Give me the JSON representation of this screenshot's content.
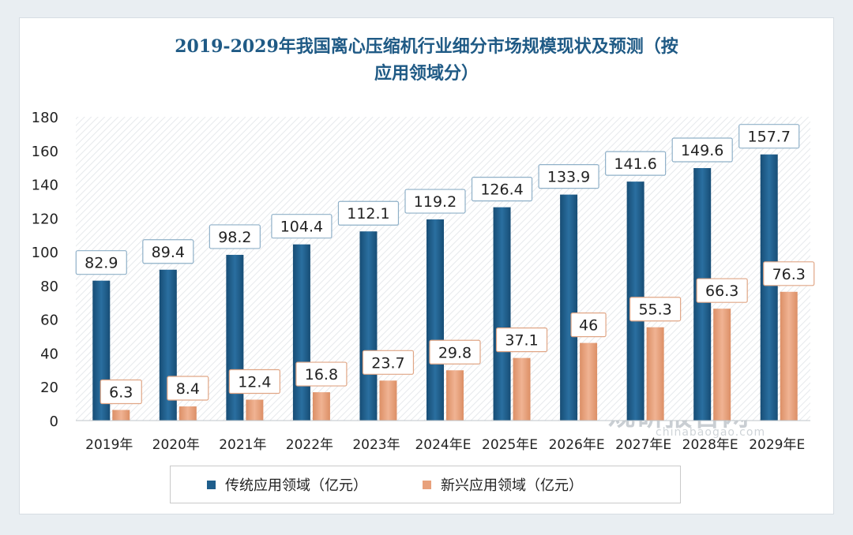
{
  "chart_data": {
    "type": "bar",
    "title": "2019-2029年我国离心压缩机行业细分市场规模现状及预测（按应用领域分）",
    "categories": [
      "2019年",
      "2020年",
      "2021年",
      "2022年",
      "2023年",
      "2024年E",
      "2025年E",
      "2026年E",
      "2027年E",
      "2028年E",
      "2029年E"
    ],
    "series": [
      {
        "name": "传统应用领域（亿元）",
        "values": [
          82.9,
          89.4,
          98.2,
          104.4,
          112.1,
          119.2,
          126.4,
          133.9,
          141.6,
          149.6,
          157.7
        ],
        "labels": [
          "82.9",
          "89.4",
          "98.2",
          "104.4",
          "112.1",
          "119.2",
          "126.4",
          "133.9",
          "141.6",
          "149.6",
          "157.7"
        ],
        "color": "#1f5e8c"
      },
      {
        "name": "新兴应用领域（亿元）",
        "values": [
          6.3,
          8.4,
          12.4,
          16.8,
          23.7,
          29.8,
          37.1,
          46,
          55.3,
          66.3,
          76.3
        ],
        "labels": [
          "6.3",
          "8.4",
          "12.4",
          "16.8",
          "23.7",
          "29.8",
          "37.1",
          "46",
          "55.3",
          "66.3",
          "76.3"
        ],
        "color": "#e8a17c"
      }
    ],
    "yticks": [
      "0",
      "20",
      "40",
      "60",
      "80",
      "100",
      "120",
      "140",
      "160",
      "180"
    ],
    "ylim": [
      0,
      180
    ],
    "legend_position": "bottom"
  },
  "title_line1": "2019-2029年我国离心压缩机行业细分市场规模现状及预测（按",
  "title_line2": "应用领域分）",
  "watermark": "观研报告网",
  "watermark_sub": "chinabaogao.com"
}
